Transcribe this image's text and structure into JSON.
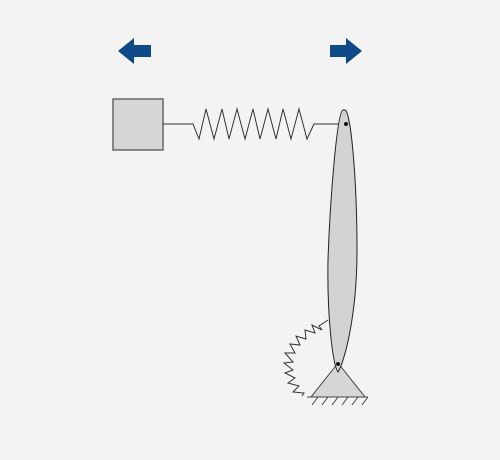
{
  "canvas": {
    "background": "#f3f3f3"
  },
  "controls": {
    "left_arrow": {
      "icon": "arrow-left-icon",
      "color": "#0e4a86"
    },
    "right_arrow": {
      "icon": "arrow-right-icon",
      "color": "#0e4a86"
    }
  },
  "mechanism": {
    "block": {
      "icon": "mass-block",
      "fill": "#d6d6d6",
      "stroke": "#666666"
    },
    "linear_spring": {
      "icon": "zigzag-spring",
      "stroke": "#333333"
    },
    "rod": {
      "icon": "pendulum-rod",
      "fill": "#d3d3d3",
      "stroke": "#222222"
    },
    "torsion_spring": {
      "icon": "torsion-spring",
      "stroke": "#333333"
    },
    "pivot": {
      "icon": "pin-support",
      "fill": "#d6d6d6",
      "stroke": "#444444"
    }
  }
}
